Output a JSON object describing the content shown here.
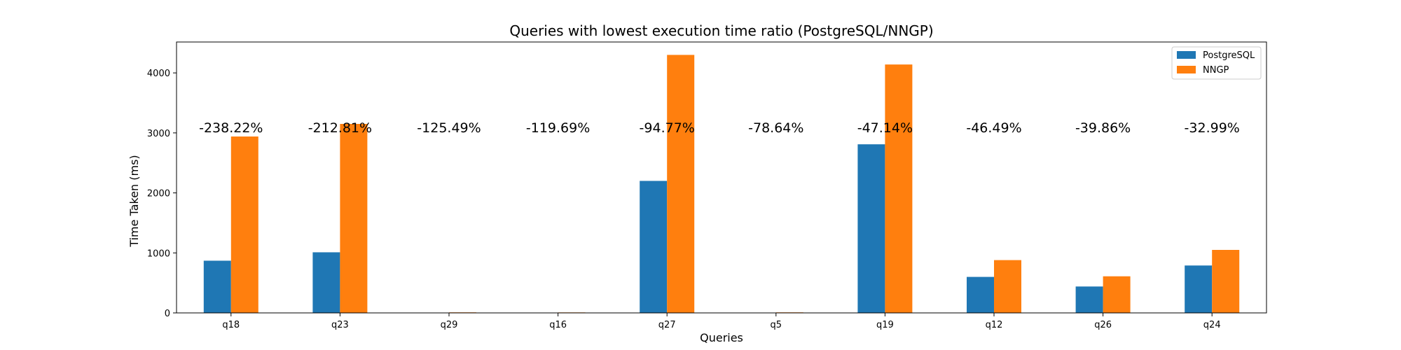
{
  "chart_data": {
    "type": "bar",
    "title": "Queries with lowest execution time ratio (PostgreSQL/NNGP)",
    "xlabel": "Queries",
    "ylabel": "Time Taken (ms)",
    "categories": [
      "q18",
      "q23",
      "q29",
      "q16",
      "q27",
      "q5",
      "q19",
      "q12",
      "q26",
      "q24"
    ],
    "series": [
      {
        "name": "PostgreSQL",
        "color": "#1f77b4",
        "values": [
          870,
          1010,
          2,
          2,
          2200,
          3,
          2810,
          600,
          440,
          790
        ]
      },
      {
        "name": "NNGP",
        "color": "#ff7f0e",
        "values": [
          2940,
          3150,
          9,
          8,
          4300,
          9,
          4140,
          880,
          610,
          1050
        ]
      }
    ],
    "annotations": [
      "-238.22%",
      "-212.81%",
      "-125.49%",
      "-119.69%",
      "-94.77%",
      "-78.64%",
      "-47.14%",
      "-46.49%",
      "-39.86%",
      "-32.99%"
    ],
    "annotation_y": 3000,
    "ylim": [
      0,
      4515
    ],
    "yticks": [
      0,
      1000,
      2000,
      3000,
      4000
    ],
    "legend_position": "top-right",
    "grid": false
  }
}
